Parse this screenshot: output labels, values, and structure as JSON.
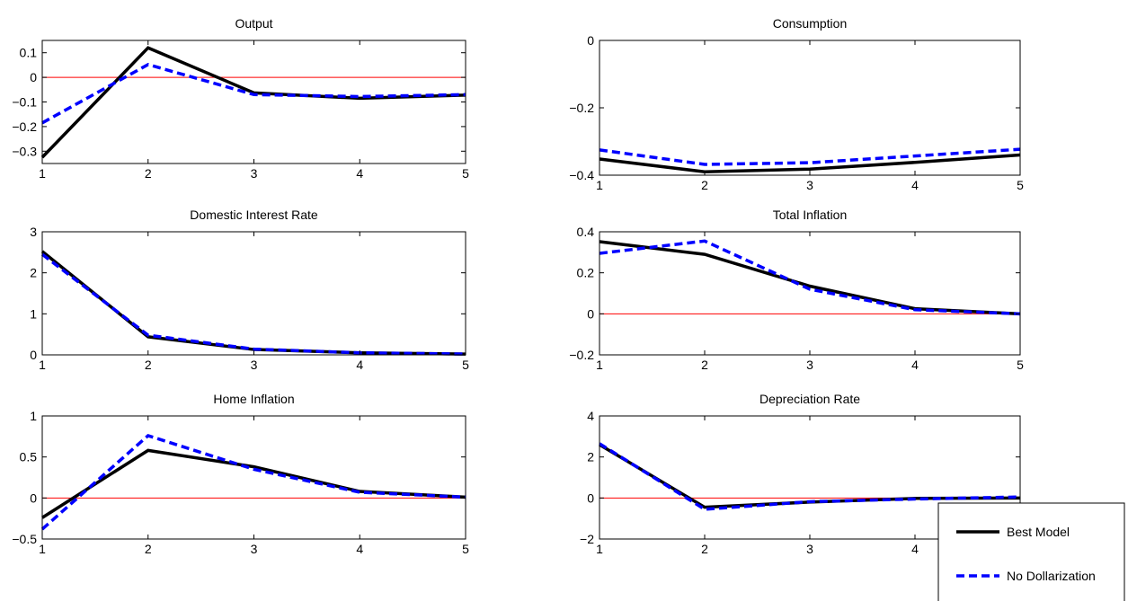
{
  "chart_data": [
    {
      "type": "line",
      "title": "Output",
      "x": [
        1,
        2,
        3,
        4,
        5
      ],
      "xlim": [
        1,
        5
      ],
      "ylim": [
        -0.35,
        0.15
      ],
      "yticks": [
        0.1,
        0,
        -0.1,
        -0.2,
        -0.3
      ],
      "ytick_labels": [
        "0.1",
        "0",
        "−0.1",
        "−0.2",
        "−0.3"
      ],
      "zero_line": 0,
      "series": [
        {
          "name": "Best Model",
          "values": [
            -0.325,
            0.12,
            -0.063,
            -0.085,
            -0.072
          ],
          "color": "#000000",
          "style": "solid"
        },
        {
          "name": "No Dollarization",
          "values": [
            -0.185,
            0.052,
            -0.07,
            -0.078,
            -0.07
          ],
          "color": "#0000ff",
          "style": "dashed"
        }
      ]
    },
    {
      "type": "line",
      "title": "Consumption",
      "x": [
        1,
        2,
        3,
        4,
        5
      ],
      "xlim": [
        1,
        5
      ],
      "ylim": [
        -0.4,
        0
      ],
      "yticks": [
        0,
        -0.2,
        -0.4
      ],
      "ytick_labels": [
        "0",
        "−0.2",
        "−0.4"
      ],
      "zero_line": 0,
      "series": [
        {
          "name": "Best Model",
          "values": [
            -0.352,
            -0.39,
            -0.382,
            -0.362,
            -0.34
          ],
          "color": "#000000",
          "style": "solid"
        },
        {
          "name": "No Dollarization",
          "values": [
            -0.325,
            -0.368,
            -0.363,
            -0.343,
            -0.323
          ],
          "color": "#0000ff",
          "style": "dashed"
        }
      ]
    },
    {
      "type": "line",
      "title": "Domestic Interest Rate",
      "x": [
        1,
        2,
        3,
        4,
        5
      ],
      "xlim": [
        1,
        5
      ],
      "ylim": [
        0,
        3
      ],
      "yticks": [
        3,
        2,
        1,
        0
      ],
      "ytick_labels": [
        "3",
        "2",
        "1",
        "0"
      ],
      "zero_line": 0,
      "series": [
        {
          "name": "Best Model",
          "values": [
            2.52,
            0.44,
            0.13,
            0.05,
            0.02
          ],
          "color": "#000000",
          "style": "solid"
        },
        {
          "name": "No Dollarization",
          "values": [
            2.45,
            0.48,
            0.14,
            0.05,
            0.02
          ],
          "color": "#0000ff",
          "style": "dashed"
        }
      ]
    },
    {
      "type": "line",
      "title": "Total Inflation",
      "x": [
        1,
        2,
        3,
        4,
        5
      ],
      "xlim": [
        1,
        5
      ],
      "ylim": [
        -0.2,
        0.4
      ],
      "yticks": [
        0.4,
        0.2,
        0,
        -0.2
      ],
      "ytick_labels": [
        "0.4",
        "0.2",
        "0",
        "−0.2"
      ],
      "zero_line": 0,
      "series": [
        {
          "name": "Best Model",
          "values": [
            0.352,
            0.29,
            0.135,
            0.025,
            0.0
          ],
          "color": "#000000",
          "style": "solid"
        },
        {
          "name": "No Dollarization",
          "values": [
            0.295,
            0.355,
            0.12,
            0.02,
            0.0
          ],
          "color": "#0000ff",
          "style": "dashed"
        }
      ]
    },
    {
      "type": "line",
      "title": "Home Inflation",
      "x": [
        1,
        2,
        3,
        4,
        5
      ],
      "xlim": [
        1,
        5
      ],
      "ylim": [
        -0.5,
        1
      ],
      "yticks": [
        1,
        0.5,
        0,
        -0.5
      ],
      "ytick_labels": [
        "1",
        "0.5",
        "0",
        "−0.5"
      ],
      "zero_line": 0,
      "series": [
        {
          "name": "Best Model",
          "values": [
            -0.24,
            0.58,
            0.38,
            0.08,
            0.01
          ],
          "color": "#000000",
          "style": "solid"
        },
        {
          "name": "No Dollarization",
          "values": [
            -0.38,
            0.76,
            0.35,
            0.07,
            0.01
          ],
          "color": "#0000ff",
          "style": "dashed"
        }
      ]
    },
    {
      "type": "line",
      "title": "Depreciation Rate",
      "x": [
        1,
        2,
        3,
        4,
        5
      ],
      "xlim": [
        1,
        5
      ],
      "ylim": [
        -2,
        4
      ],
      "yticks": [
        4,
        2,
        0,
        -2
      ],
      "ytick_labels": [
        "4",
        "2",
        "0",
        "−2"
      ],
      "zero_line": 0,
      "series": [
        {
          "name": "Best Model",
          "values": [
            2.6,
            -0.45,
            -0.2,
            -0.02,
            0.0
          ],
          "color": "#000000",
          "style": "solid"
        },
        {
          "name": "No Dollarization",
          "values": [
            2.65,
            -0.55,
            -0.18,
            -0.05,
            0.05
          ],
          "color": "#0000ff",
          "style": "dashed"
        }
      ]
    }
  ],
  "legend": {
    "placement": "bottom-right",
    "entries": [
      {
        "label": "Best Model",
        "color": "#000000",
        "style": "solid"
      },
      {
        "label": "No Dollarization",
        "color": "#0000ff",
        "style": "dashed"
      }
    ]
  },
  "colors": {
    "zero_line": "#ff0000",
    "best_model": "#000000",
    "no_dollarization": "#0000ff"
  }
}
